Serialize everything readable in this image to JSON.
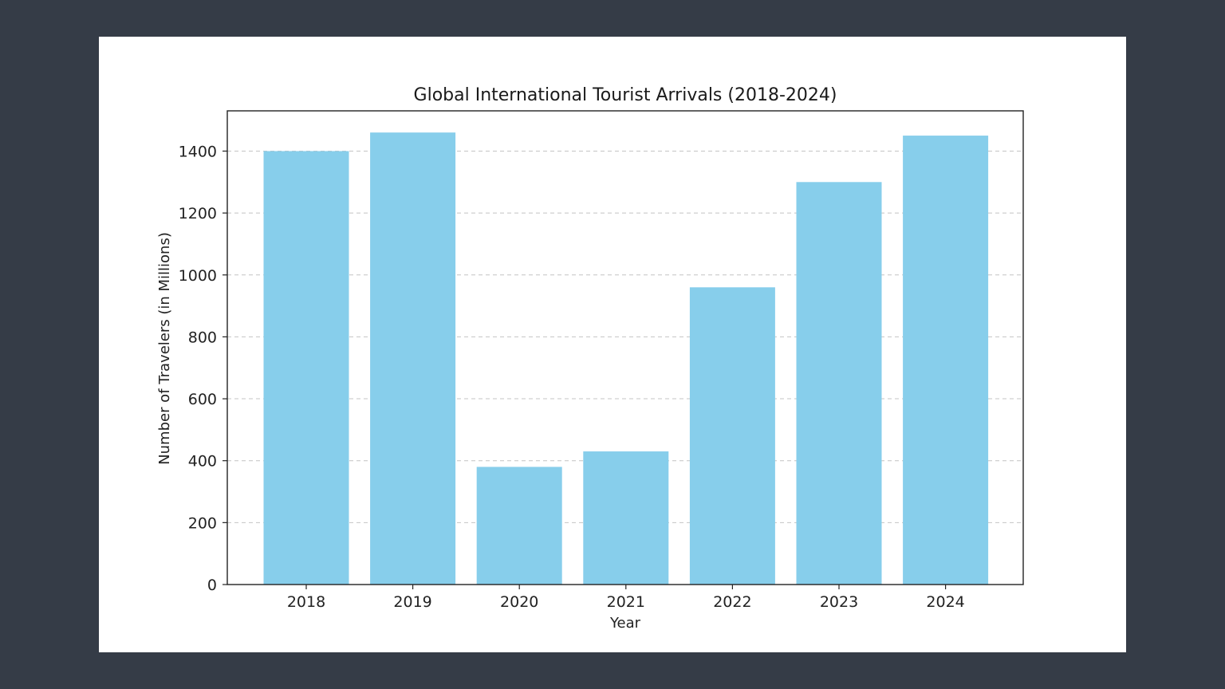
{
  "chart_data": {
    "type": "bar",
    "title": "Global International Tourist Arrivals (2018-2024)",
    "xlabel": "Year",
    "ylabel": "Number of Travelers (in Millions)",
    "categories": [
      "2018",
      "2019",
      "2020",
      "2021",
      "2022",
      "2023",
      "2024"
    ],
    "values": [
      1400,
      1460,
      380,
      430,
      960,
      1300,
      1450
    ],
    "ylim": [
      0,
      1530
    ],
    "yticks": [
      0,
      200,
      400,
      600,
      800,
      1000,
      1200,
      1400
    ],
    "ytick_labels": [
      "0",
      "200",
      "400",
      "600",
      "800",
      "1000",
      "1200",
      "1400"
    ],
    "grid": true,
    "bar_color": "#87ceeb"
  }
}
